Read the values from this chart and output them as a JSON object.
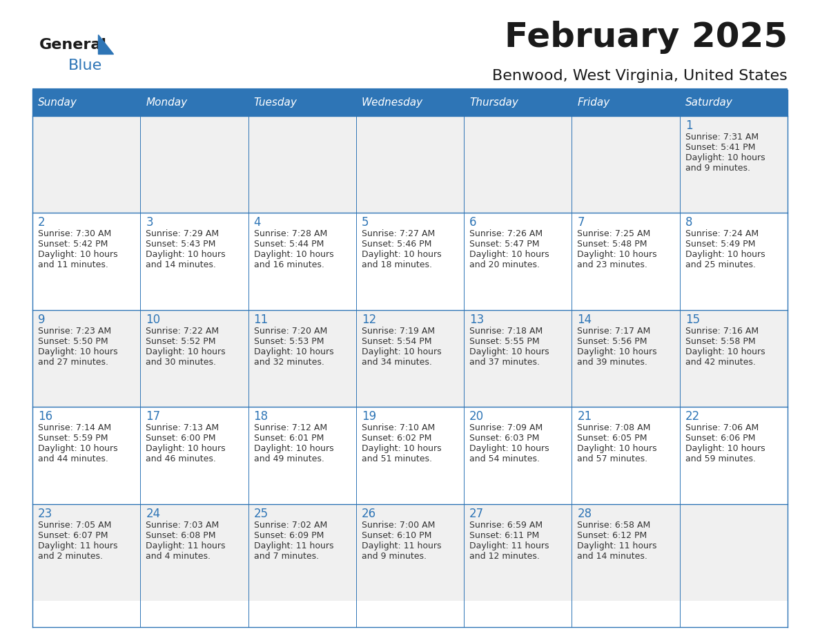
{
  "title": "February 2025",
  "subtitle": "Benwood, West Virginia, United States",
  "header_color": "#2E75B6",
  "header_text_color": "#FFFFFF",
  "cell_bg_color": "#F0F0F0",
  "cell_bg_white": "#FFFFFF",
  "border_color": "#2E75B6",
  "days_of_week": [
    "Sunday",
    "Monday",
    "Tuesday",
    "Wednesday",
    "Thursday",
    "Friday",
    "Saturday"
  ],
  "title_color": "#1A1A1A",
  "subtitle_color": "#1A1A1A",
  "day_number_color": "#2E75B6",
  "text_color": "#333333",
  "logo_general_color": "#1A1A1A",
  "logo_blue_color": "#2E75B6",
  "logo_triangle_color": "#2E75B6",
  "calendar": [
    [
      null,
      null,
      null,
      null,
      null,
      null,
      {
        "day": 1,
        "sunrise": "7:31 AM",
        "sunset": "5:41 PM",
        "daylight": "10 hours and 9 minutes."
      }
    ],
    [
      {
        "day": 2,
        "sunrise": "7:30 AM",
        "sunset": "5:42 PM",
        "daylight": "10 hours and 11 minutes."
      },
      {
        "day": 3,
        "sunrise": "7:29 AM",
        "sunset": "5:43 PM",
        "daylight": "10 hours and 14 minutes."
      },
      {
        "day": 4,
        "sunrise": "7:28 AM",
        "sunset": "5:44 PM",
        "daylight": "10 hours and 16 minutes."
      },
      {
        "day": 5,
        "sunrise": "7:27 AM",
        "sunset": "5:46 PM",
        "daylight": "10 hours and 18 minutes."
      },
      {
        "day": 6,
        "sunrise": "7:26 AM",
        "sunset": "5:47 PM",
        "daylight": "10 hours and 20 minutes."
      },
      {
        "day": 7,
        "sunrise": "7:25 AM",
        "sunset": "5:48 PM",
        "daylight": "10 hours and 23 minutes."
      },
      {
        "day": 8,
        "sunrise": "7:24 AM",
        "sunset": "5:49 PM",
        "daylight": "10 hours and 25 minutes."
      }
    ],
    [
      {
        "day": 9,
        "sunrise": "7:23 AM",
        "sunset": "5:50 PM",
        "daylight": "10 hours and 27 minutes."
      },
      {
        "day": 10,
        "sunrise": "7:22 AM",
        "sunset": "5:52 PM",
        "daylight": "10 hours and 30 minutes."
      },
      {
        "day": 11,
        "sunrise": "7:20 AM",
        "sunset": "5:53 PM",
        "daylight": "10 hours and 32 minutes."
      },
      {
        "day": 12,
        "sunrise": "7:19 AM",
        "sunset": "5:54 PM",
        "daylight": "10 hours and 34 minutes."
      },
      {
        "day": 13,
        "sunrise": "7:18 AM",
        "sunset": "5:55 PM",
        "daylight": "10 hours and 37 minutes."
      },
      {
        "day": 14,
        "sunrise": "7:17 AM",
        "sunset": "5:56 PM",
        "daylight": "10 hours and 39 minutes."
      },
      {
        "day": 15,
        "sunrise": "7:16 AM",
        "sunset": "5:58 PM",
        "daylight": "10 hours and 42 minutes."
      }
    ],
    [
      {
        "day": 16,
        "sunrise": "7:14 AM",
        "sunset": "5:59 PM",
        "daylight": "10 hours and 44 minutes."
      },
      {
        "day": 17,
        "sunrise": "7:13 AM",
        "sunset": "6:00 PM",
        "daylight": "10 hours and 46 minutes."
      },
      {
        "day": 18,
        "sunrise": "7:12 AM",
        "sunset": "6:01 PM",
        "daylight": "10 hours and 49 minutes."
      },
      {
        "day": 19,
        "sunrise": "7:10 AM",
        "sunset": "6:02 PM",
        "daylight": "10 hours and 51 minutes."
      },
      {
        "day": 20,
        "sunrise": "7:09 AM",
        "sunset": "6:03 PM",
        "daylight": "10 hours and 54 minutes."
      },
      {
        "day": 21,
        "sunrise": "7:08 AM",
        "sunset": "6:05 PM",
        "daylight": "10 hours and 57 minutes."
      },
      {
        "day": 22,
        "sunrise": "7:06 AM",
        "sunset": "6:06 PM",
        "daylight": "10 hours and 59 minutes."
      }
    ],
    [
      {
        "day": 23,
        "sunrise": "7:05 AM",
        "sunset": "6:07 PM",
        "daylight": "11 hours and 2 minutes."
      },
      {
        "day": 24,
        "sunrise": "7:03 AM",
        "sunset": "6:08 PM",
        "daylight": "11 hours and 4 minutes."
      },
      {
        "day": 25,
        "sunrise": "7:02 AM",
        "sunset": "6:09 PM",
        "daylight": "11 hours and 7 minutes."
      },
      {
        "day": 26,
        "sunrise": "7:00 AM",
        "sunset": "6:10 PM",
        "daylight": "11 hours and 9 minutes."
      },
      {
        "day": 27,
        "sunrise": "6:59 AM",
        "sunset": "6:11 PM",
        "daylight": "11 hours and 12 minutes."
      },
      {
        "day": 28,
        "sunrise": "6:58 AM",
        "sunset": "6:12 PM",
        "daylight": "11 hours and 14 minutes."
      },
      null
    ]
  ]
}
